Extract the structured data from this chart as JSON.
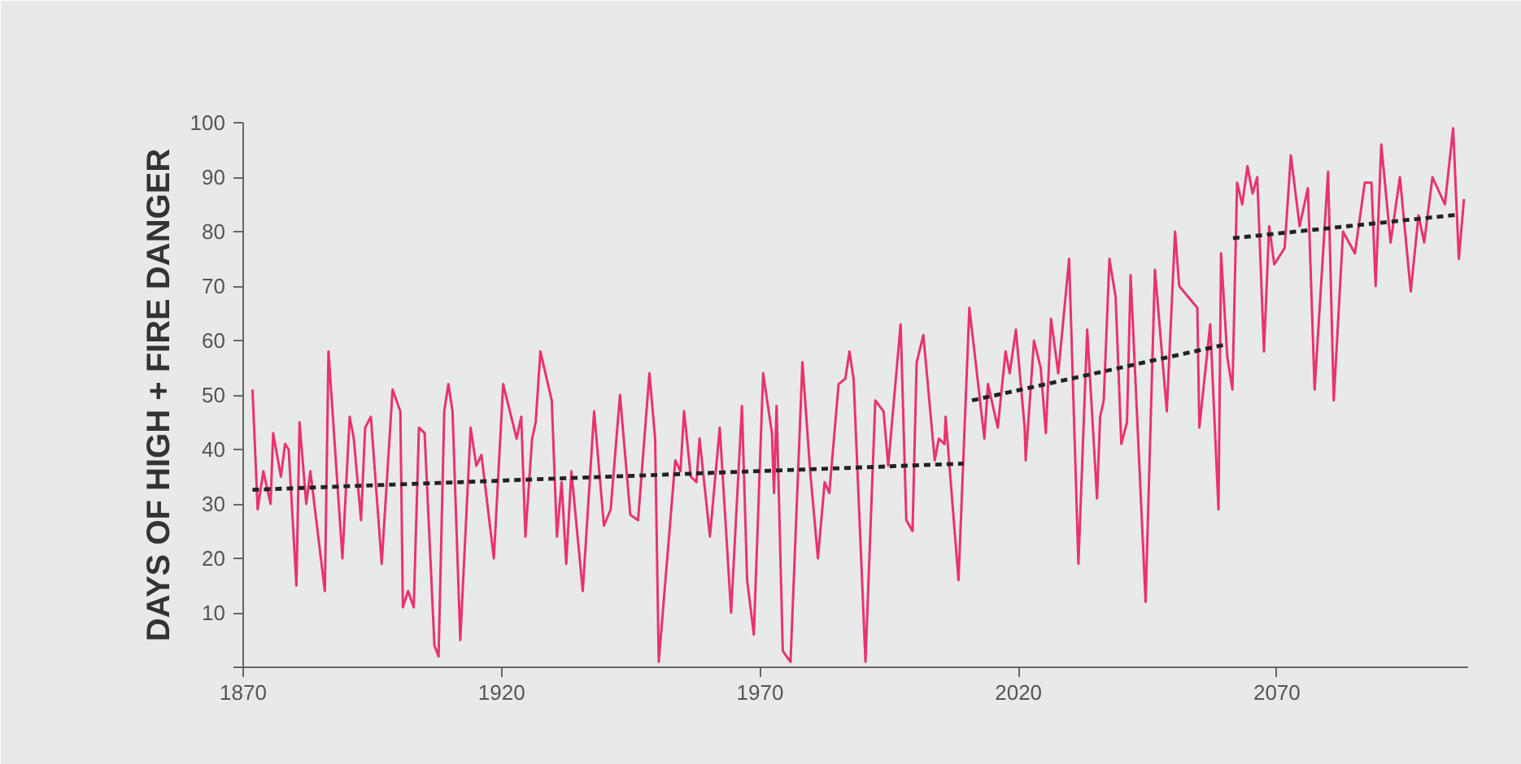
{
  "chart_data": {
    "type": "line",
    "ylabel": "DAYS OF HIGH + FIRE DANGER",
    "xlim": [
      1870,
      2107
    ],
    "xticks": [
      1870,
      1920,
      1970,
      2020,
      2070
    ],
    "ylim": [
      0,
      100
    ],
    "yticks": [
      {
        "value": 0,
        "label": null
      },
      10,
      20,
      30,
      40,
      50,
      60,
      70,
      80,
      90,
      100
    ],
    "marker": "none",
    "series": [
      {
        "color": "#e8336c",
        "line_style": "solid",
        "x": [
          1871.8,
          1872.8,
          1873.9,
          1874.6,
          1875.3,
          1875.8,
          1877.3,
          1878.1,
          1878.8,
          1880.3,
          1880.9,
          1882.2,
          1883.0,
          1885.8,
          1886.5,
          1889.2,
          1890.6,
          1891.4,
          1892.8,
          1893.6,
          1894.7,
          1896.8,
          1898.9,
          1900.4,
          1900.9,
          1901.9,
          1903.0,
          1904.0,
          1905.1,
          1907.0,
          1907.8,
          1908.9,
          1909.7,
          1910.5,
          1912.0,
          1914.0,
          1915.1,
          1916.1,
          1918.5,
          1920.3,
          1922.9,
          1923.8,
          1924.6,
          1925.9,
          1926.6,
          1927.5,
          1929.7,
          1930.7,
          1931.6,
          1932.5,
          1933.5,
          1935.7,
          1937.9,
          1939.8,
          1941.1,
          1942.9,
          1944.9,
          1946.4,
          1948.6,
          1949.7,
          1950.4,
          1953.6,
          1954.6,
          1955.3,
          1956.6,
          1957.7,
          1958.3,
          1960.3,
          1962.2,
          1964.4,
          1966.5,
          1967.5,
          1968.8,
          1970.6,
          1972.3,
          1972.7,
          1973.2,
          1974.4,
          1975.9,
          1978.2,
          1979.7,
          1981.2,
          1982.5,
          1983.4,
          1985.2,
          1986.5,
          1987.3,
          1988.1,
          1990.4,
          1992.3,
          1993.9,
          1994.8,
          1997.2,
          1998.3,
          1999.5,
          2000.3,
          2001.6,
          2003.8,
          2004.6,
          2005.7,
          2005.9,
          2008.4,
          2010.5,
          2011.6,
          2013.4,
          2014.1,
          2016.0,
          2017.5,
          2018.3,
          2019.5,
          2021.2,
          2021.4,
          2023.0,
          2024.3,
          2025.3,
          2026.3,
          2027.7,
          2029.8,
          2031.6,
          2033.3,
          2035.2,
          2035.8,
          2036.5,
          2037.6,
          2038.8,
          2039.9,
          2041.0,
          2041.7,
          2044.6,
          2046.4,
          2048.7,
          2050.3,
          2051.1,
          2054.6,
          2055.0,
          2057.1,
          2058.7,
          2059.2,
          2060.4,
          2061.4,
          2062.3,
          2063.3,
          2064.3,
          2065.3,
          2066.2,
          2067.5,
          2068.5,
          2069.5,
          2071.5,
          2072.7,
          2074.4,
          2076.0,
          2077.3,
          2079.9,
          2081.0,
          2082.8,
          2085.1,
          2087.0,
          2088.3,
          2089.1,
          2090.2,
          2092.0,
          2093.8,
          2095.9,
          2097.4,
          2098.5,
          2100.1,
          2102.5,
          2104.1,
          2105.2,
          2106.2
        ],
        "values": [
          51,
          29,
          36,
          33,
          30,
          43,
          35,
          41,
          40,
          15,
          45,
          30,
          36,
          14,
          58,
          20,
          46,
          42,
          27,
          44,
          46,
          19,
          51,
          47,
          11,
          14,
          11,
          44,
          43,
          4,
          2,
          47,
          52,
          47,
          5,
          44,
          37,
          39,
          20,
          52,
          42,
          46,
          24,
          42,
          45,
          58,
          49,
          24,
          34,
          19,
          36,
          14,
          47,
          26,
          29,
          50,
          28,
          27,
          54,
          42,
          1,
          38,
          36,
          47,
          35,
          34,
          42,
          24,
          44,
          10,
          48,
          16,
          6,
          54,
          43,
          32,
          48,
          3,
          1,
          56,
          36,
          20,
          34,
          32,
          52,
          53,
          58,
          53,
          1,
          49,
          47,
          37,
          63,
          27,
          25,
          56,
          61,
          38,
          42,
          41,
          46,
          16,
          66,
          57,
          42,
          52,
          44,
          58,
          54,
          62,
          44,
          38,
          60,
          55,
          43,
          64,
          54,
          75,
          19,
          62,
          31,
          46,
          49,
          75,
          68,
          41,
          45,
          72,
          12,
          73,
          47,
          80,
          70,
          66,
          44,
          63,
          29,
          76,
          57,
          51,
          89,
          85,
          92,
          87,
          90,
          58,
          81,
          74,
          77,
          94,
          81,
          88,
          51,
          91,
          49,
          80,
          76,
          89,
          89,
          70,
          96,
          78,
          90,
          69,
          83,
          78,
          90,
          85,
          99,
          75,
          86
        ]
      },
      {
        "color": "#222222",
        "line_style": "dashed",
        "x": [
          1871.8,
          2009.4
        ],
        "values": [
          32.6,
          37.4
        ]
      },
      {
        "color": "#222222",
        "line_style": "dashed",
        "x": [
          2011.0,
          2060.2
        ],
        "values": [
          49,
          59.3
        ]
      },
      {
        "color": "#222222",
        "line_style": "dashed",
        "x": [
          2061.5,
          2104.9
        ],
        "values": [
          78.8,
          83.1
        ]
      }
    ]
  }
}
